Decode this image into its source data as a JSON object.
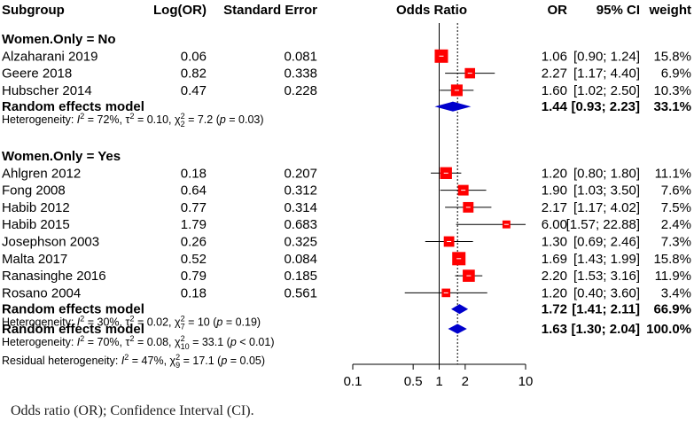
{
  "chart_data": {
    "type": "forest",
    "headers": {
      "subgroup": "Subgroup",
      "log_or": "Log(OR)",
      "se": "Standard Error",
      "plot": "Odds Ratio",
      "or": "OR",
      "ci": "95% CI",
      "weight": "weight"
    },
    "groups": [
      {
        "label": "Women.Only = No",
        "studies": [
          {
            "name": "Alzaharani 2019",
            "log_or": "0.06",
            "se": "0.081",
            "or_text": "1.06",
            "ci_text": "[0.90;  1.24]",
            "weight_text": "15.8%",
            "or": 1.06,
            "lo": 0.9,
            "hi": 1.24,
            "weight": 15.8
          },
          {
            "name": "Geere 2018",
            "log_or": "0.82",
            "se": "0.338",
            "or_text": "2.27",
            "ci_text": "[1.17;  4.40]",
            "weight_text": "6.9%",
            "or": 2.27,
            "lo": 1.17,
            "hi": 4.4,
            "weight": 6.9
          },
          {
            "name": "Hubscher 2014",
            "log_or": "0.47",
            "se": "0.228",
            "or_text": "1.60",
            "ci_text": "[1.02;  2.50]",
            "weight_text": "10.3%",
            "or": 1.6,
            "lo": 1.02,
            "hi": 2.5,
            "weight": 10.3
          }
        ],
        "model": {
          "label": "Random effects model",
          "or_text": "1.44",
          "ci_text": "[0.93;  2.23]",
          "weight_text": "33.1%",
          "or": 1.44,
          "lo": 0.93,
          "hi": 2.23
        },
        "het": {
          "i2": "72%",
          "tau2": "0.10",
          "df": "2",
          "q": "7.2",
          "p": "0.03"
        }
      },
      {
        "label": "Women.Only = Yes",
        "studies": [
          {
            "name": "Ahlgren 2012",
            "log_or": "0.18",
            "se": "0.207",
            "or_text": "1.20",
            "ci_text": "[0.80;  1.80]",
            "weight_text": "11.1%",
            "or": 1.2,
            "lo": 0.8,
            "hi": 1.8,
            "weight": 11.1
          },
          {
            "name": "Fong 2008",
            "log_or": "0.64",
            "se": "0.312",
            "or_text": "1.90",
            "ci_text": "[1.03;  3.50]",
            "weight_text": "7.6%",
            "or": 1.9,
            "lo": 1.03,
            "hi": 3.5,
            "weight": 7.6
          },
          {
            "name": "Habib 2012",
            "log_or": "0.77",
            "se": "0.314",
            "or_text": "2.17",
            "ci_text": "[1.17;  4.02]",
            "weight_text": "7.5%",
            "or": 2.17,
            "lo": 1.17,
            "hi": 4.02,
            "weight": 7.5
          },
          {
            "name": "Habib 2015",
            "log_or": "1.79",
            "se": "0.683",
            "or_text": "6.00",
            "ci_text": "[1.57; 22.88]",
            "weight_text": "2.4%",
            "or": 6.0,
            "lo": 1.57,
            "hi": 22.88,
            "weight": 2.4
          },
          {
            "name": "Josephson 2003",
            "log_or": "0.26",
            "se": "0.325",
            "or_text": "1.30",
            "ci_text": "[0.69;  2.46]",
            "weight_text": "7.3%",
            "or": 1.3,
            "lo": 0.69,
            "hi": 2.46,
            "weight": 7.3
          },
          {
            "name": "Malta 2017",
            "log_or": "0.52",
            "se": "0.084",
            "or_text": "1.69",
            "ci_text": "[1.43;  1.99]",
            "weight_text": "15.8%",
            "or": 1.69,
            "lo": 1.43,
            "hi": 1.99,
            "weight": 15.8
          },
          {
            "name": "Ranasinghe 2016",
            "log_or": "0.79",
            "se": "0.185",
            "or_text": "2.20",
            "ci_text": "[1.53;  3.16]",
            "weight_text": "11.9%",
            "or": 2.2,
            "lo": 1.53,
            "hi": 3.16,
            "weight": 11.9
          },
          {
            "name": "Rosano  2004",
            "log_or": "0.18",
            "se": "0.561",
            "or_text": "1.20",
            "ci_text": "[0.40;  3.60]",
            "weight_text": "3.4%",
            "or": 1.2,
            "lo": 0.4,
            "hi": 3.6,
            "weight": 3.4
          }
        ],
        "model": {
          "label": "Random effects model",
          "or_text": "1.72",
          "ci_text": "[1.41;  2.11]",
          "weight_text": "66.9%",
          "or": 1.72,
          "lo": 1.41,
          "hi": 2.11
        },
        "het": {
          "i2": "30%",
          "tau2": "0.02",
          "df": "7",
          "q": "10",
          "p": "0.19"
        }
      }
    ],
    "overall": {
      "model": {
        "label": "Random effects model",
        "or_text": "1.63",
        "ci_text": "[1.30;  2.04]",
        "weight_text": "100.0%",
        "or": 1.63,
        "lo": 1.3,
        "hi": 2.04
      },
      "het": {
        "i2": "70%",
        "tau2": "0.08",
        "df": "10",
        "q": "33.1",
        "p_text": "< 0.01"
      },
      "residual_het": {
        "label": "Residual heterogeneity",
        "i2": "47%",
        "df": "9",
        "q": "17.1",
        "p": "0.05"
      }
    },
    "axis": {
      "scale": "log",
      "ticks": [
        0.1,
        0.5,
        1,
        2,
        10
      ],
      "tick_labels": [
        "0.1",
        "0.5",
        "1",
        "2",
        "10"
      ],
      "xlim": [
        0.1,
        10
      ],
      "null_value": 1
    },
    "colors": {
      "square": "#ff0000",
      "diamond": "#0000cc",
      "line": "#000000",
      "text": "#000000"
    }
  },
  "caption": "Odds ratio (OR); Confidence Interval (CI)."
}
